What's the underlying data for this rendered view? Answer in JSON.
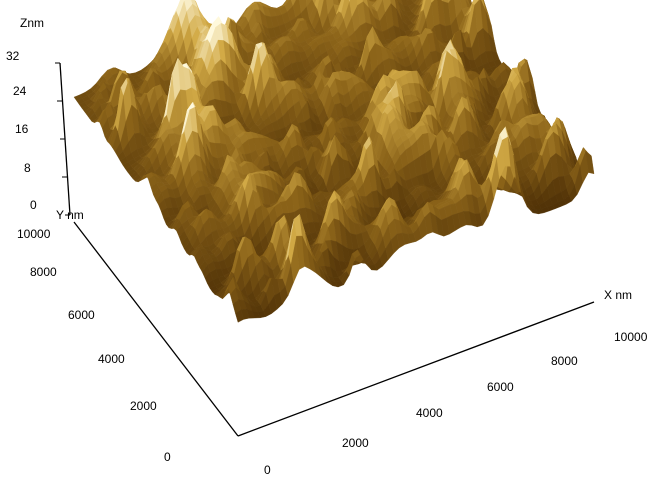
{
  "chart_data": {
    "type": "surface",
    "z_axis": {
      "label": "Znm",
      "ticks": [
        "32",
        "24",
        "16",
        "8",
        "0"
      ],
      "range": [
        0,
        32
      ]
    },
    "y_axis": {
      "label": "Y nm",
      "ticks": [
        "10000",
        "8000",
        "6000",
        "4000",
        "2000",
        "0"
      ],
      "range": [
        0,
        10000
      ]
    },
    "x_axis": {
      "label": "X nm",
      "ticks": [
        "0",
        "2000",
        "4000",
        "6000",
        "8000",
        "10000"
      ],
      "range": [
        0,
        10000
      ]
    },
    "colors": {
      "low": "#3a1f00",
      "mid": "#a87a1c",
      "high": "#fff9dc",
      "axis": "#000000",
      "background": "#ffffff"
    }
  }
}
